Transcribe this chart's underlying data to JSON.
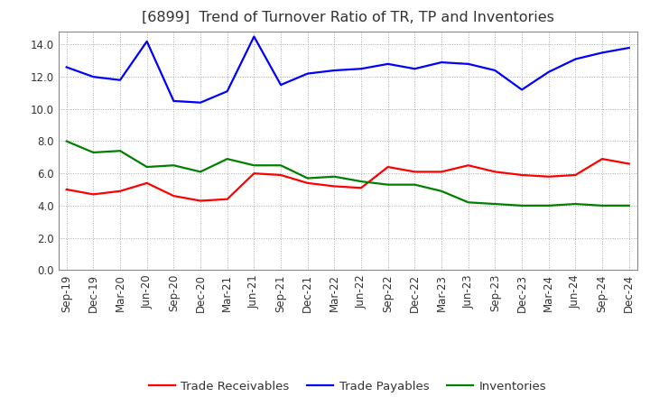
{
  "title": "[6899]  Trend of Turnover Ratio of TR, TP and Inventories",
  "x_labels": [
    "Sep-19",
    "Dec-19",
    "Mar-20",
    "Jun-20",
    "Sep-20",
    "Dec-20",
    "Mar-21",
    "Jun-21",
    "Sep-21",
    "Dec-21",
    "Mar-22",
    "Jun-22",
    "Sep-22",
    "Dec-22",
    "Mar-23",
    "Jun-23",
    "Sep-23",
    "Dec-23",
    "Mar-24",
    "Jun-24",
    "Sep-24",
    "Dec-24"
  ],
  "trade_receivables": [
    5.0,
    4.7,
    4.9,
    5.4,
    4.6,
    4.3,
    4.4,
    6.0,
    5.9,
    5.4,
    5.2,
    5.1,
    6.4,
    6.1,
    6.1,
    6.5,
    6.1,
    5.9,
    5.8,
    5.9,
    6.9,
    6.6
  ],
  "trade_payables": [
    12.6,
    12.0,
    11.8,
    14.2,
    10.5,
    10.4,
    11.1,
    14.5,
    11.5,
    12.2,
    12.4,
    12.5,
    12.8,
    12.5,
    12.9,
    12.8,
    12.4,
    11.2,
    12.3,
    13.1,
    13.5,
    13.8
  ],
  "inventories": [
    8.0,
    7.3,
    7.4,
    6.4,
    6.5,
    6.1,
    6.9,
    6.5,
    6.5,
    5.7,
    5.8,
    5.5,
    5.3,
    5.3,
    4.9,
    4.2,
    4.1,
    4.0,
    4.0,
    4.1,
    4.0,
    4.0
  ],
  "ylim": [
    0,
    14.8
  ],
  "yticks": [
    0.0,
    2.0,
    4.0,
    6.0,
    8.0,
    10.0,
    12.0,
    14.0
  ],
  "color_tr": "#ff0000",
  "color_tp": "#0000ff",
  "color_inv": "#008000",
  "bg_color": "#ffffff",
  "grid_color": "#aaaaaa",
  "title_color": "#333333",
  "title_fontsize": 11.5,
  "label_fontsize": 8.5,
  "legend_fontsize": 9.5,
  "linewidth": 1.6
}
